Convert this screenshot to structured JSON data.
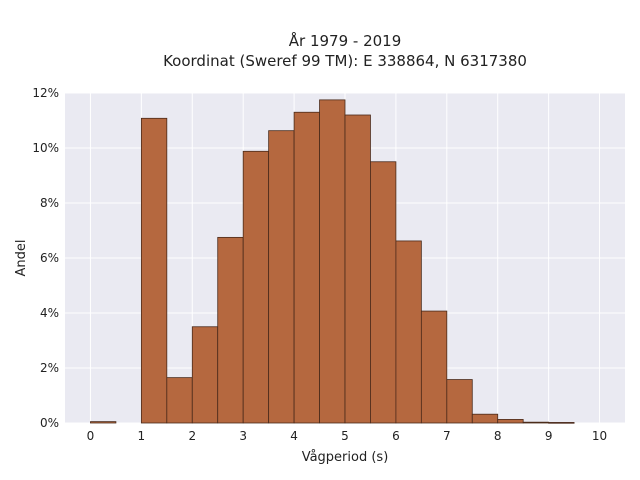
{
  "chart_data": {
    "type": "bar",
    "title_line1": "År 1979 - 2019",
    "title_line2": "Koordinat (Sweref 99 TM): E 338864, N 6317380",
    "xlabel": "Vågperiod (s)",
    "ylabel": "Andel",
    "xlim": [
      -0.5,
      10.5
    ],
    "ylim": [
      0,
      0.12
    ],
    "x_ticks": [
      0,
      1,
      2,
      3,
      4,
      5,
      6,
      7,
      8,
      9,
      10
    ],
    "x_tick_labels": [
      "0",
      "1",
      "2",
      "3",
      "4",
      "5",
      "6",
      "7",
      "8",
      "9",
      "10"
    ],
    "y_ticks": [
      0,
      0.02,
      0.04,
      0.06,
      0.08,
      0.1,
      0.12
    ],
    "y_tick_labels": [
      "0%",
      "2%",
      "4%",
      "6%",
      "8%",
      "10%",
      "12%"
    ],
    "bin_width": 0.5,
    "bins": [
      {
        "start": 0.0,
        "value": 0.0005
      },
      {
        "start": 0.5,
        "value": 0.0
      },
      {
        "start": 1.0,
        "value": 0.1108
      },
      {
        "start": 1.5,
        "value": 0.0165
      },
      {
        "start": 2.0,
        "value": 0.035
      },
      {
        "start": 2.5,
        "value": 0.0675
      },
      {
        "start": 3.0,
        "value": 0.0988
      },
      {
        "start": 3.5,
        "value": 0.1063
      },
      {
        "start": 4.0,
        "value": 0.113
      },
      {
        "start": 4.5,
        "value": 0.1175
      },
      {
        "start": 5.0,
        "value": 0.112
      },
      {
        "start": 5.5,
        "value": 0.095
      },
      {
        "start": 6.0,
        "value": 0.0662
      },
      {
        "start": 6.5,
        "value": 0.0407
      },
      {
        "start": 7.0,
        "value": 0.0158
      },
      {
        "start": 7.5,
        "value": 0.0032
      },
      {
        "start": 8.0,
        "value": 0.0013
      },
      {
        "start": 8.5,
        "value": 0.0003
      },
      {
        "start": 9.0,
        "value": 0.0002
      }
    ],
    "bar_color": "#b5683f",
    "plot_background": "#eaeaf2",
    "grid": true
  }
}
